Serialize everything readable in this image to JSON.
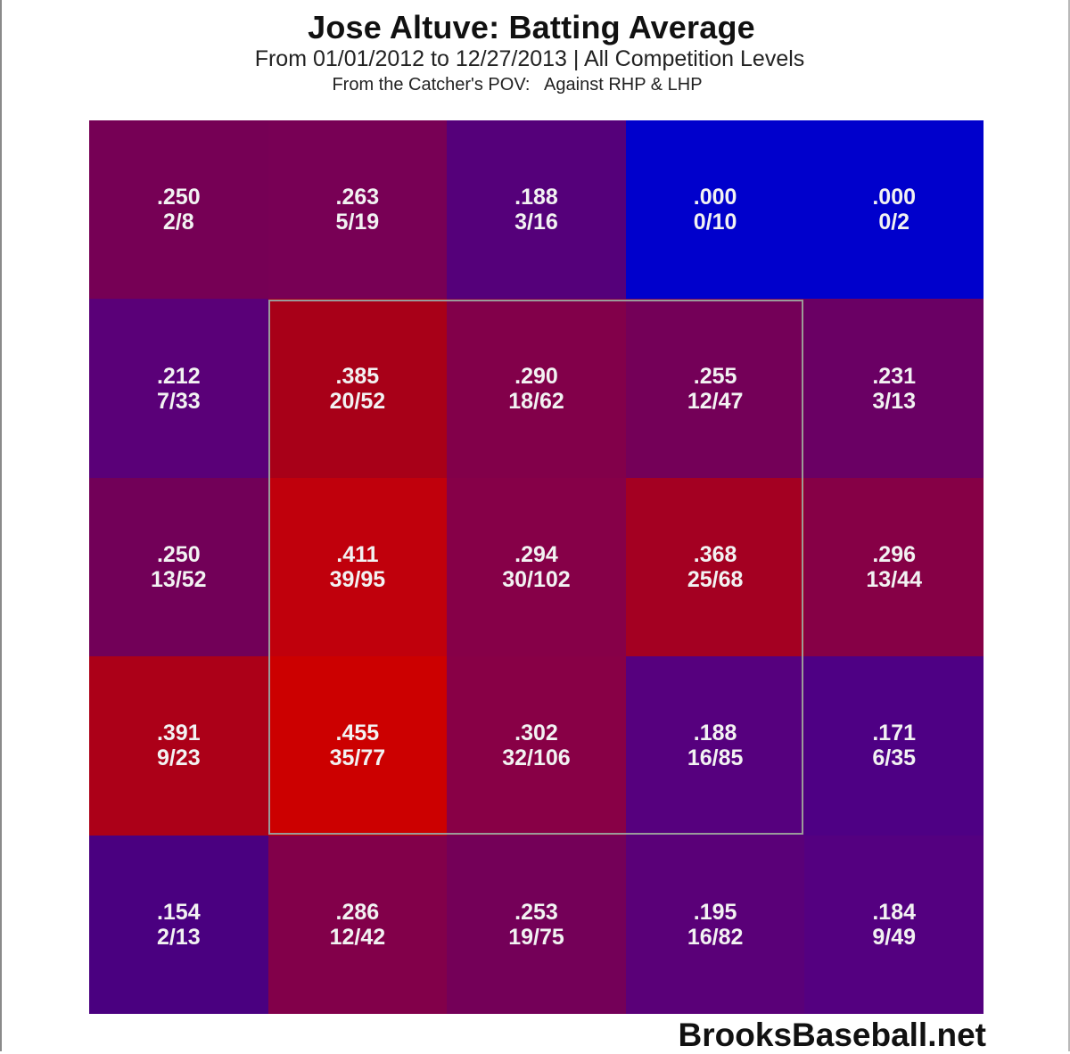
{
  "header": {
    "title": "Jose Altuve: Batting Average",
    "subtitle": "From 01/01/2012 to 12/27/2013 | All Competition Levels",
    "subtitle2": "From the Catcher's POV:   Against RHP & LHP"
  },
  "watermark": "BrooksBaseball.net",
  "chart_data": {
    "type": "heatmap",
    "title": "Jose Altuve: Batting Average",
    "subtitle": "From 01/01/2012 to 12/27/2013 | All Competition Levels",
    "note": "From the Catcher's POV: Against RHP & LHP",
    "xlabel": "",
    "ylabel": "",
    "grid_size": [
      5,
      5
    ],
    "strike_zone": {
      "rows": [
        1,
        3
      ],
      "cols": [
        1,
        3
      ]
    },
    "color_scale": {
      "low": "#0000cc",
      "mid": "#760055",
      "high": "#cc0000"
    },
    "rows": [
      [
        {
          "avg": ".250",
          "hits_ab": "2/8",
          "color": "#760055"
        },
        {
          "avg": ".263",
          "hits_ab": "5/19",
          "color": "#780055"
        },
        {
          "avg": ".188",
          "hits_ab": "3/16",
          "color": "#55007a"
        },
        {
          "avg": ".000",
          "hits_ab": "0/10",
          "color": "#0000cc"
        },
        {
          "avg": ".000",
          "hits_ab": "0/2",
          "color": "#0000cc"
        }
      ],
      [
        {
          "avg": ".212",
          "hits_ab": "7/33",
          "color": "#5a0078"
        },
        {
          "avg": ".385",
          "hits_ab": "20/52",
          "color": "#a80018"
        },
        {
          "avg": ".290",
          "hits_ab": "18/62",
          "color": "#82004a"
        },
        {
          "avg": ".255",
          "hits_ab": "12/47",
          "color": "#740058"
        },
        {
          "avg": ".231",
          "hits_ab": "3/13",
          "color": "#6a0064"
        }
      ],
      [
        {
          "avg": ".250",
          "hits_ab": "13/52",
          "color": "#720058"
        },
        {
          "avg": ".411",
          "hits_ab": "39/95",
          "color": "#c0000c"
        },
        {
          "avg": ".294",
          "hits_ab": "30/102",
          "color": "#860048"
        },
        {
          "avg": ".368",
          "hits_ab": "25/68",
          "color": "#a40022"
        },
        {
          "avg": ".296",
          "hits_ab": "13/44",
          "color": "#860046"
        }
      ],
      [
        {
          "avg": ".391",
          "hits_ab": "9/23",
          "color": "#ac0018"
        },
        {
          "avg": ".455",
          "hits_ab": "35/77",
          "color": "#cc0000"
        },
        {
          "avg": ".302",
          "hits_ab": "32/106",
          "color": "#880046"
        },
        {
          "avg": ".188",
          "hits_ab": "16/85",
          "color": "#56007e"
        },
        {
          "avg": ".171",
          "hits_ab": "6/35",
          "color": "#4e0084"
        }
      ],
      [
        {
          "avg": ".154",
          "hits_ab": "2/13",
          "color": "#4a0080"
        },
        {
          "avg": ".286",
          "hits_ab": "12/42",
          "color": "#82004a"
        },
        {
          "avg": ".253",
          "hits_ab": "19/75",
          "color": "#740058"
        },
        {
          "avg": ".195",
          "hits_ab": "16/82",
          "color": "#5a0078"
        },
        {
          "avg": ".184",
          "hits_ab": "9/49",
          "color": "#540080"
        }
      ]
    ]
  }
}
